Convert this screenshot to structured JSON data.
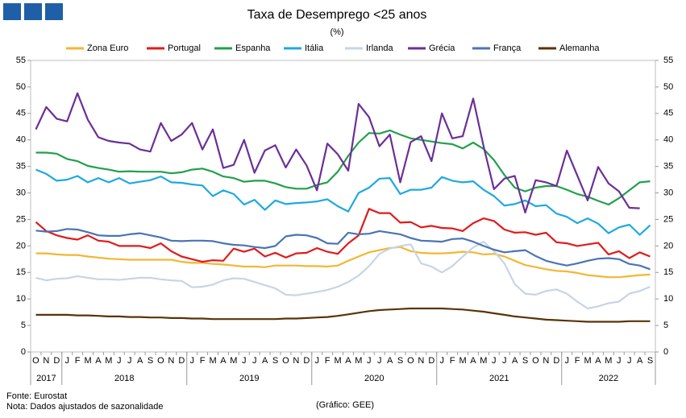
{
  "chart_data": {
    "type": "line",
    "title": "Taxa de Desemprego <25 anos",
    "subtitle": "(%)",
    "source": "Fonte: Eurostat",
    "note": "Nota: Dados ajustados de sazonalidade",
    "credit": "(Gráfico: GEE)",
    "categories": [
      "O",
      "N",
      "D",
      "J",
      "F",
      "M",
      "A",
      "M",
      "J",
      "J",
      "A",
      "S",
      "O",
      "N",
      "D",
      "J",
      "F",
      "M",
      "A",
      "M",
      "J",
      "J",
      "A",
      "S",
      "O",
      "N",
      "D",
      "J",
      "F",
      "M",
      "A",
      "M",
      "J",
      "J",
      "A",
      "S",
      "O",
      "N",
      "D",
      "J",
      "F",
      "M",
      "A",
      "M",
      "J",
      "J",
      "A",
      "S",
      "O",
      "N",
      "D",
      "J",
      "F",
      "M",
      "A",
      "M",
      "J",
      "J",
      "A",
      "S"
    ],
    "year_groups": [
      {
        "label": "2017",
        "count": 3
      },
      {
        "label": "2018",
        "count": 12
      },
      {
        "label": "2019",
        "count": 12
      },
      {
        "label": "2020",
        "count": 12
      },
      {
        "label": "2021",
        "count": 12
      },
      {
        "label": "2022",
        "count": 9
      }
    ],
    "ylim": [
      0,
      55
    ],
    "yticks": [
      0,
      5,
      10,
      15,
      20,
      25,
      30,
      35,
      40,
      45,
      50,
      55
    ],
    "y2lim": [
      0,
      55
    ],
    "y2ticks": [
      0,
      5,
      10,
      15,
      20,
      25,
      30,
      35,
      40,
      45,
      50,
      55
    ],
    "series": [
      {
        "name": "Zona Euro",
        "color": "#f2b732",
        "values": [
          18.6,
          18.6,
          18.4,
          18.3,
          18.3,
          18.0,
          17.8,
          17.6,
          17.5,
          17.4,
          17.4,
          17.4,
          17.4,
          17.4,
          17.0,
          16.8,
          16.8,
          16.6,
          16.5,
          16.3,
          16.1,
          16.1,
          16.0,
          16.3,
          16.3,
          16.3,
          16.2,
          16.2,
          16.1,
          16.3,
          17.2,
          18.0,
          18.8,
          19.2,
          19.6,
          19.8,
          19.0,
          18.7,
          18.6,
          18.6,
          18.7,
          18.9,
          18.8,
          18.4,
          18.5,
          18.0,
          17.2,
          16.4,
          16.0,
          15.6,
          15.3,
          15.2,
          14.9,
          14.5,
          14.3,
          14.1,
          14.1,
          14.3,
          14.5,
          14.6
        ]
      },
      {
        "name": "Portugal",
        "color": "#e01b1b",
        "values": [
          24.5,
          22.8,
          22.0,
          21.5,
          21.2,
          22.0,
          21.0,
          20.8,
          20.0,
          20.0,
          20.0,
          19.6,
          20.5,
          19.0,
          18.0,
          17.5,
          17.0,
          17.3,
          17.2,
          19.5,
          18.9,
          19.5,
          18.0,
          18.7,
          17.8,
          18.6,
          18.7,
          19.6,
          18.9,
          18.5,
          20.5,
          22.0,
          27.0,
          26.2,
          26.2,
          24.4,
          24.5,
          23.5,
          23.8,
          23.4,
          23.3,
          22.8,
          24.3,
          25.2,
          24.7,
          23.1,
          22.5,
          22.6,
          22.1,
          22.5,
          20.7,
          20.5,
          20.0,
          20.3,
          20.6,
          18.4,
          19.0,
          17.7,
          18.8,
          18.0
        ]
      },
      {
        "name": "Espanha",
        "color": "#21a04b",
        "values": [
          37.6,
          37.6,
          37.4,
          36.4,
          36.0,
          35.1,
          34.7,
          34.4,
          34.0,
          34.1,
          34.0,
          34.0,
          34.0,
          33.7,
          33.9,
          34.4,
          34.6,
          34.0,
          33.1,
          32.8,
          32.1,
          32.3,
          32.3,
          31.8,
          31.1,
          30.8,
          30.8,
          31.5,
          32.0,
          34.0,
          37.0,
          39.5,
          41.3,
          41.2,
          41.8,
          41.0,
          40.3,
          40.0,
          39.7,
          39.4,
          39.2,
          38.4,
          39.5,
          38.3,
          36.2,
          33.4,
          31.0,
          30.3,
          31.0,
          31.3,
          31.3,
          30.6,
          29.8,
          29.3,
          28.5,
          27.8,
          29.0,
          30.5,
          32.0,
          32.2
        ]
      },
      {
        "name": "Itália",
        "color": "#1fa8e1",
        "values": [
          34.4,
          33.6,
          32.3,
          32.5,
          33.2,
          32.0,
          32.8,
          32.0,
          32.8,
          31.8,
          32.1,
          32.4,
          33.1,
          32.0,
          31.9,
          31.6,
          31.4,
          29.4,
          30.5,
          29.8,
          27.8,
          28.7,
          26.8,
          28.6,
          27.9,
          28.1,
          28.2,
          28.4,
          28.8,
          27.5,
          26.5,
          30.0,
          31.0,
          32.7,
          32.8,
          29.8,
          30.6,
          30.6,
          31.0,
          33.0,
          32.3,
          32.0,
          32.2,
          30.6,
          29.4,
          27.6,
          27.9,
          28.6,
          27.5,
          27.7,
          26.1,
          25.5,
          24.3,
          25.2,
          24.2,
          22.4,
          23.5,
          24.0,
          22.1,
          23.9
        ]
      },
      {
        "name": "Irlanda",
        "color": "#c6d5e6",
        "values": [
          14.0,
          13.5,
          13.8,
          13.9,
          14.3,
          14.0,
          13.7,
          13.7,
          13.6,
          13.8,
          14.0,
          14.0,
          13.7,
          13.5,
          13.4,
          12.2,
          12.3,
          12.7,
          13.5,
          13.9,
          13.8,
          13.2,
          12.6,
          12.0,
          10.8,
          10.7,
          11.0,
          11.3,
          11.7,
          12.3,
          13.2,
          14.4,
          16.2,
          18.5,
          19.5,
          20.0,
          20.3,
          16.7,
          16.1,
          15.0,
          16.2,
          18.0,
          19.7,
          20.8,
          19.0,
          16.7,
          12.8,
          11.0,
          10.8,
          11.5,
          11.8,
          11.0,
          9.5,
          8.2,
          8.6,
          9.2,
          9.5,
          11.0,
          11.5,
          12.3
        ]
      },
      {
        "name": "Grécia",
        "color": "#6b2f97",
        "values": [
          42.0,
          46.2,
          44.0,
          43.5,
          48.8,
          43.8,
          40.5,
          39.8,
          39.5,
          39.3,
          38.2,
          37.8,
          43.2,
          39.8,
          41.0,
          43.2,
          38.2,
          42.0,
          34.7,
          35.3,
          40.0,
          33.8,
          38.0,
          39.0,
          34.8,
          38.2,
          35.2,
          30.5,
          39.3,
          37.3,
          34.2,
          46.8,
          44.3,
          38.8,
          41.0,
          32.0,
          39.6,
          40.7,
          36.0,
          45.0,
          40.3,
          40.7,
          47.8,
          38.8,
          30.7,
          32.7,
          33.2,
          26.3,
          32.4,
          32.0,
          31.3,
          38.0,
          33.3,
          28.6,
          34.9,
          31.8,
          30.3,
          27.2,
          27.1,
          null
        ]
      },
      {
        "name": "França",
        "color": "#4a74b4",
        "values": [
          22.9,
          22.7,
          22.8,
          23.2,
          23.1,
          22.6,
          22.0,
          21.9,
          21.9,
          22.2,
          22.4,
          22.0,
          21.6,
          21.0,
          20.9,
          21.0,
          21.0,
          20.9,
          20.5,
          20.2,
          20.1,
          19.8,
          19.6,
          20.0,
          21.8,
          22.1,
          22.0,
          21.5,
          20.5,
          20.4,
          22.5,
          22.2,
          22.3,
          22.8,
          22.5,
          22.2,
          21.5,
          21.0,
          20.9,
          20.8,
          21.3,
          21.4,
          20.8,
          20.0,
          19.3,
          18.8,
          19.0,
          19.2,
          18.1,
          17.2,
          16.7,
          16.3,
          16.7,
          17.2,
          17.6,
          17.7,
          17.5,
          16.6,
          16.3,
          15.6
        ]
      },
      {
        "name": "Alemanha",
        "color": "#5a3307",
        "values": [
          7.0,
          7.0,
          7.0,
          7.0,
          6.9,
          6.9,
          6.8,
          6.7,
          6.7,
          6.6,
          6.6,
          6.5,
          6.5,
          6.4,
          6.4,
          6.3,
          6.3,
          6.2,
          6.2,
          6.2,
          6.2,
          6.2,
          6.2,
          6.2,
          6.3,
          6.3,
          6.4,
          6.5,
          6.6,
          6.8,
          7.1,
          7.4,
          7.7,
          7.9,
          8.0,
          8.1,
          8.2,
          8.2,
          8.2,
          8.2,
          8.1,
          8.0,
          7.8,
          7.6,
          7.3,
          7.0,
          6.7,
          6.5,
          6.3,
          6.1,
          6.0,
          5.9,
          5.8,
          5.7,
          5.7,
          5.7,
          5.7,
          5.8,
          5.8,
          5.8
        ]
      }
    ]
  }
}
